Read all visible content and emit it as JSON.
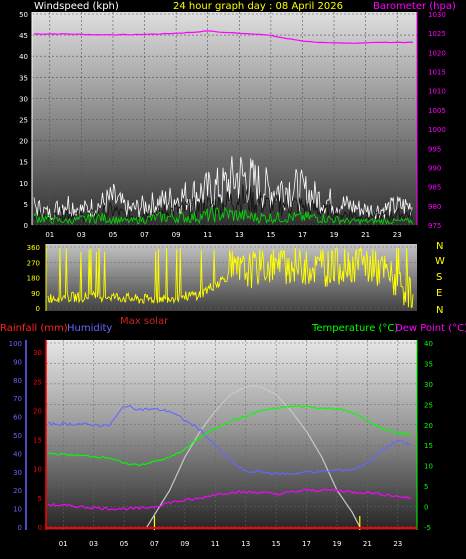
{
  "colors": {
    "wind": "#ffffff",
    "gust": "#c8c8c8",
    "windGreen": "#00e000",
    "baro": "#ff00ff",
    "title": "#ffff00",
    "dir": "#ffff00",
    "rain": "#ff0000",
    "hum": "#6666ff",
    "temp": "#00ff00",
    "dew": "#ff00ff",
    "solar": "#c8c8c8",
    "tickYellow": "#ffff00"
  },
  "header": {
    "wind_label": "Windspeed (kph)",
    "title": "24 hour graph day : 08 April 2026",
    "baro_label": "Barometer (hpa)"
  },
  "mid": {
    "maxsolar_label": "Max solar",
    "compass": [
      "N",
      "W",
      "S",
      "E",
      "N"
    ]
  },
  "lower": {
    "rain_label": "Rainfall (mm)",
    "hum_label": "Humidity",
    "temp_label": "Temperature (°C)",
    "dew_label": "Dew Point (°C)"
  },
  "chart_data": [
    {
      "type": "line",
      "title": "24 hour graph day : 08 April 2026",
      "x_ticks": [
        "01",
        "03",
        "05",
        "07",
        "09",
        "11",
        "13",
        "15",
        "17",
        "19",
        "21",
        "23"
      ],
      "y_left": {
        "label": "Windspeed (kph)",
        "ticks": [
          0,
          5,
          10,
          15,
          20,
          25,
          30,
          35,
          40,
          45,
          50
        ],
        "range": [
          0,
          50
        ]
      },
      "y_right": {
        "label": "Barometer (hpa)",
        "ticks": [
          975,
          980,
          985,
          990,
          995,
          1000,
          1005,
          1010,
          1015,
          1020,
          1025,
          1030
        ],
        "range": [
          975,
          1030
        ]
      },
      "series": [
        {
          "name": "Barometer (hpa)",
          "hours": [
            0,
            2,
            4,
            6,
            8,
            10,
            11,
            12,
            14,
            15,
            16,
            17,
            18,
            19,
            20,
            22,
            24
          ],
          "values": [
            1024.8,
            1024.8,
            1024.6,
            1024.6,
            1024.8,
            1025.2,
            1025.6,
            1025.2,
            1024.8,
            1024.4,
            1023.6,
            1023.0,
            1022.6,
            1022.4,
            1022.4,
            1022.6,
            1022.6
          ]
        },
        {
          "name": "Wind gust",
          "hours": [
            0,
            1,
            2,
            3,
            4,
            5,
            6,
            7,
            8,
            9,
            10,
            11,
            12,
            13,
            14,
            15,
            16,
            17,
            18,
            19,
            20,
            21,
            22,
            23,
            24
          ],
          "values": [
            5,
            3,
            6,
            4,
            5,
            7,
            4,
            5,
            6,
            7,
            8,
            9,
            10,
            13,
            11,
            9,
            10,
            9,
            7,
            6,
            5,
            4,
            4,
            5,
            5
          ]
        },
        {
          "name": "Wind average",
          "hours": [
            0,
            2,
            4,
            6,
            8,
            10,
            12,
            14,
            16,
            18,
            20,
            22,
            24
          ],
          "values": [
            2,
            1,
            2,
            1,
            2,
            2,
            3,
            2,
            2,
            2,
            1,
            1,
            1
          ]
        }
      ]
    },
    {
      "type": "line",
      "title": "Wind direction",
      "y_left": {
        "ticks": [
          0,
          90,
          180,
          270,
          360
        ],
        "range": [
          0,
          360
        ]
      },
      "y_right_labels": [
        "N",
        "W",
        "S",
        "E",
        "N"
      ],
      "series": [
        {
          "name": "Direction",
          "hours": [
            0,
            2,
            4,
            6,
            8,
            10,
            12,
            14,
            16,
            18,
            20,
            22,
            24
          ],
          "values": [
            60,
            65,
            70,
            50,
            60,
            80,
            200,
            240,
            250,
            230,
            260,
            220,
            70
          ]
        }
      ]
    },
    {
      "type": "line",
      "title": "Max solar",
      "x_ticks": [
        "01",
        "03",
        "05",
        "07",
        "09",
        "11",
        "13",
        "15",
        "17",
        "19",
        "21",
        "23"
      ],
      "y_left_rain": {
        "label": "Rainfall (mm)",
        "ticks": [
          0,
          5,
          10,
          15,
          20,
          25,
          30
        ],
        "range": [
          0,
          30
        ]
      },
      "y_left_hum": {
        "label": "Humidity",
        "ticks": [
          0,
          10,
          20,
          30,
          40,
          50,
          60,
          70,
          80,
          90,
          100
        ],
        "range": [
          0,
          100
        ]
      },
      "y_right": {
        "label": "Temperature (°C)",
        "ticks": [
          -5,
          0,
          5,
          10,
          15,
          20,
          25,
          30,
          35,
          40
        ],
        "range": [
          -5,
          40
        ]
      },
      "series": [
        {
          "name": "Humidity",
          "hours": [
            0,
            2,
            4,
            4.5,
            5,
            6,
            7,
            8,
            9,
            10,
            11,
            12,
            13,
            14,
            15,
            16,
            17,
            18,
            19,
            20,
            21,
            22,
            23,
            24
          ],
          "values": [
            56,
            56,
            55,
            60,
            66,
            64,
            64,
            63,
            58,
            53,
            44,
            36,
            30,
            30,
            29,
            29,
            30,
            30,
            31,
            31,
            35,
            42,
            47,
            44
          ]
        },
        {
          "name": "Temperature (°C)",
          "hours": [
            0,
            2,
            4,
            5,
            6,
            7,
            8,
            9,
            10,
            11,
            12,
            13,
            14,
            15,
            16,
            17,
            18,
            19,
            20,
            21,
            22,
            23,
            24
          ],
          "values": [
            13,
            12.5,
            12,
            10.5,
            10.2,
            11,
            12,
            14,
            17,
            19,
            21,
            22,
            23.5,
            24,
            24.5,
            24.5,
            24,
            24,
            23,
            21,
            19,
            18,
            17.5
          ]
        },
        {
          "name": "Dew Point (°C)",
          "hours": [
            0,
            2,
            4,
            6,
            7,
            8,
            9,
            10,
            11,
            12,
            13,
            14,
            15,
            16,
            17,
            18,
            19,
            20,
            21,
            22,
            23,
            24
          ],
          "values": [
            0.5,
            0,
            -0.5,
            -0.5,
            0,
            1,
            1.5,
            2,
            3,
            3.5,
            3.5,
            3.5,
            3,
            3.5,
            4,
            4,
            4,
            3.5,
            3.5,
            3,
            2.5,
            2
          ]
        },
        {
          "name": "Max solar",
          "hours": [
            6.5,
            8,
            9,
            10,
            11,
            12,
            13,
            13.5,
            14,
            15,
            16,
            17,
            18,
            19,
            20,
            20.5
          ],
          "values": [
            0,
            20,
            38,
            52,
            63,
            72,
            76,
            77,
            76,
            72,
            63,
            52,
            38,
            20,
            8,
            0
          ]
        },
        {
          "name": "Rainfall (mm)",
          "hours": [
            0,
            24
          ],
          "values": [
            0,
            0
          ]
        }
      ]
    }
  ]
}
